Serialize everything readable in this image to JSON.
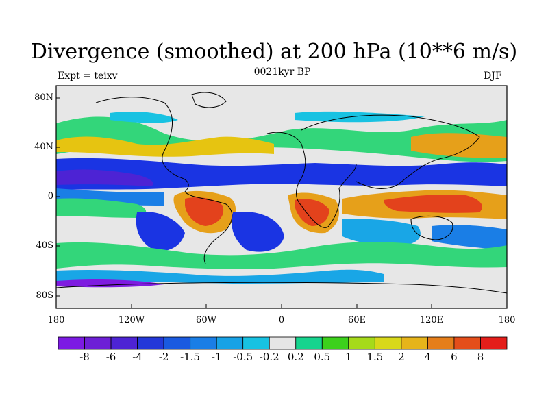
{
  "header": {
    "title": "Divergence (smoothed) at 200 hPa (10**6 m/s)",
    "left": "Expt = teixv",
    "center": "0021kyr BP",
    "right": "DJF"
  },
  "map": {
    "projection": "cylindrical equidistant",
    "lat_ticks": [
      "80N",
      "40N",
      "0",
      "40S",
      "80S"
    ],
    "lon_ticks": [
      "180",
      "120W",
      "60W",
      "0",
      "60E",
      "120E",
      "180"
    ],
    "field_colors": {
      "strong_convergence": "#7e1be0",
      "convergence": "#1a34e3",
      "weak_convergence": "#19a6e6",
      "near_zero": "#e7e7e7",
      "weak_divergence": "#33d67a",
      "divergence": "#e6c411",
      "strong_divergence": "#e3421c"
    }
  },
  "colorbar": {
    "colors": [
      "#7c1ae3",
      "#6d1fd6",
      "#4d23d4",
      "#2338d8",
      "#1a5ae0",
      "#1a7ee6",
      "#18a2e6",
      "#18c2e2",
      "#e6e6e6",
      "#16d48e",
      "#3cd11c",
      "#a6da1a",
      "#d8d81a",
      "#e6b41a",
      "#e57e1a",
      "#e44e1a",
      "#e41e1a"
    ],
    "labels": [
      "-8",
      "-6",
      "-4",
      "-2",
      "-1.5",
      "-1",
      "-0.5",
      "-0.2",
      "0.2",
      "0.5",
      "1",
      "1.5",
      "2",
      "4",
      "6",
      "8"
    ]
  }
}
